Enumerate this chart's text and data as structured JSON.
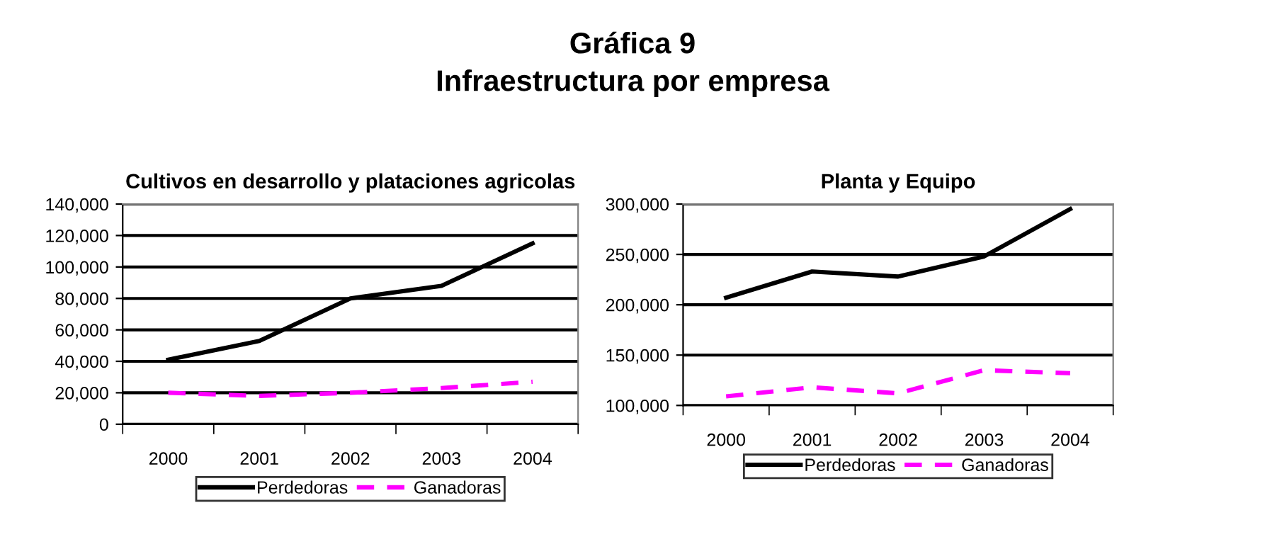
{
  "chart_data": [
    {
      "type": "line",
      "title": "Cultivos en desarrollo y plataciones agricolas",
      "annotations": [
        "Gráfica 9",
        "Infraestructura por empresa"
      ],
      "categories": [
        "2000",
        "2001",
        "2002",
        "2003",
        "2004"
      ],
      "series": [
        {
          "name": "Perdedoras",
          "color": "#000000",
          "line_style": "solid",
          "values": [
            41000,
            53000,
            80000,
            88000,
            115000
          ]
        },
        {
          "name": "Ganadoras",
          "color": "#ff00ff",
          "line_style": "dashed",
          "values": [
            20000,
            18000,
            20000,
            23000,
            27000
          ]
        }
      ],
      "ylim": [
        0,
        140000
      ],
      "yticks": [
        {
          "value": 0,
          "label": "0"
        },
        {
          "value": 20000,
          "label": "20,000"
        },
        {
          "value": 40000,
          "label": "40,000"
        },
        {
          "value": 60000,
          "label": "60,000"
        },
        {
          "value": 80000,
          "label": "80,000"
        },
        {
          "value": 100000,
          "label": "100,000"
        },
        {
          "value": 120000,
          "label": "120,000"
        },
        {
          "value": 140000,
          "label": "140,000"
        }
      ],
      "grid": "y",
      "legend": "bottom",
      "marker": "none"
    },
    {
      "type": "line",
      "title": "Planta y Equipo",
      "categories": [
        "2000",
        "2001",
        "2002",
        "2003",
        "2004"
      ],
      "series": [
        {
          "name": "Perdedoras",
          "color": "#000000",
          "line_style": "solid",
          "values": [
            207000,
            233000,
            228000,
            248000,
            295000
          ]
        },
        {
          "name": "Ganadoras",
          "color": "#ff00ff",
          "line_style": "dashed",
          "values": [
            109000,
            118000,
            112000,
            135000,
            132000
          ]
        }
      ],
      "ylim": [
        100000,
        300000
      ],
      "yticks": [
        {
          "value": 100000,
          "label": "100,000"
        },
        {
          "value": 150000,
          "label": "150,000"
        },
        {
          "value": 200000,
          "label": "200,000"
        },
        {
          "value": 250000,
          "label": "250,000"
        },
        {
          "value": 300000,
          "label": "300,000"
        }
      ],
      "grid": "y",
      "legend": "bottom",
      "marker": "none"
    }
  ]
}
